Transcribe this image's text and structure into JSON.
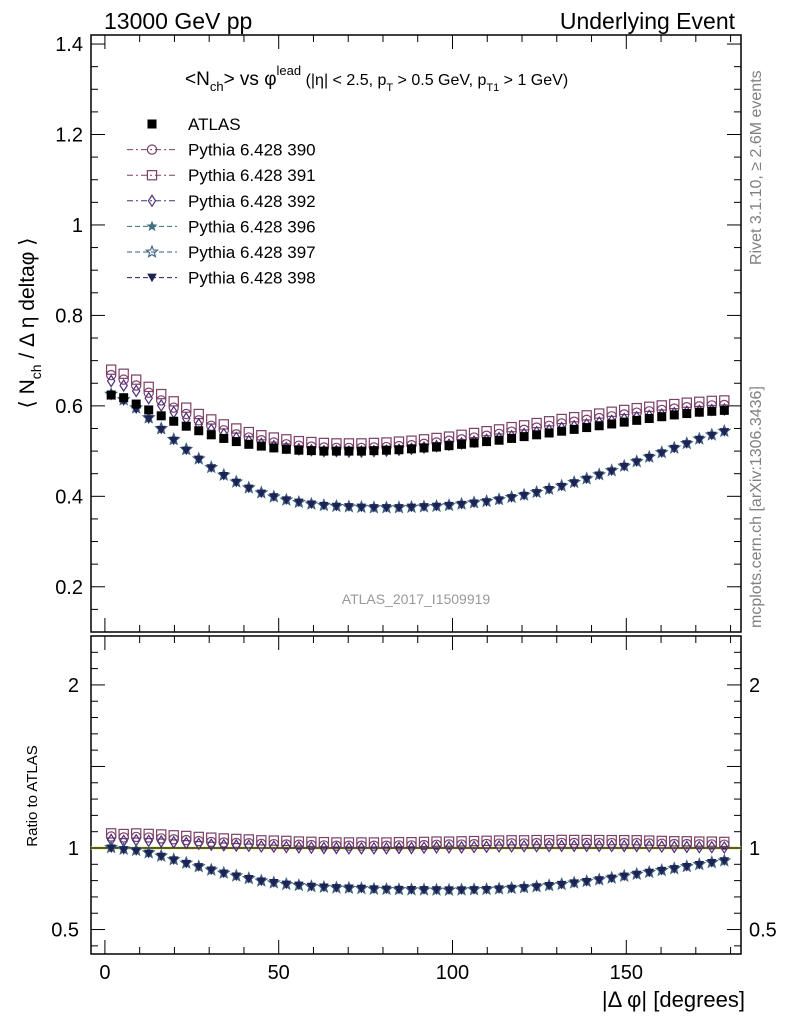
{
  "header": {
    "left": "13000 GeV pp",
    "right": "Underlying Event"
  },
  "side_labels": {
    "rivet": "Rivet 3.1.10, ≥ 2.6M events",
    "mcplots": "mcplots.cern.ch [arXiv:1306.3436]"
  },
  "watermark": "ATLAS_2017_I1509919",
  "chart_data": {
    "type": "scatter",
    "title": "<Nch> vs φlead (|η| < 2.5, pT > 0.5 GeV, pT1 > 1 GeV)",
    "title_parts": {
      "n": "<N",
      "n_sub": "ch",
      "mid": "> vs φ",
      "lead_sup": "lead",
      "cuts_a": " (|η| < 2.5, p",
      "t_sub": "T",
      "cuts_b": " > 0.5 GeV, p",
      "t1_sub": "T1",
      "cuts_c": " > 1 GeV)"
    },
    "ylabel_parts": {
      "a": "⟨ N",
      "sub": "ch",
      "b": " / Δ η deltaφ ⟩"
    },
    "xlabel": "|Δ φ| [degrees]",
    "ratio_ylabel": "Ratio to ATLAS",
    "xlim": [
      -4,
      183
    ],
    "ylim_main": [
      0.1,
      1.42
    ],
    "ylim_ratio": [
      0.35,
      2.3
    ],
    "x_ticks": [
      0,
      50,
      100,
      150
    ],
    "y_ticks_main": [
      0.2,
      0.4,
      0.6,
      0.8,
      1,
      1.2,
      1.4
    ],
    "y_ticks_ratio": [
      0.5,
      1,
      2
    ],
    "legend_position": "top-left",
    "x": [
      1.8,
      5.4,
      9.0,
      12.6,
      16.2,
      19.8,
      23.4,
      27.0,
      30.6,
      34.2,
      37.8,
      41.4,
      45.0,
      48.6,
      52.2,
      55.8,
      59.4,
      63.0,
      66.6,
      70.2,
      73.8,
      77.4,
      81.0,
      84.6,
      88.2,
      91.8,
      95.4,
      99.0,
      102.6,
      106.2,
      109.8,
      113.4,
      117.0,
      120.6,
      124.2,
      127.8,
      131.4,
      135.0,
      138.6,
      142.2,
      145.8,
      149.4,
      153.0,
      156.6,
      160.2,
      163.8,
      167.4,
      171.0,
      174.6,
      178.2
    ],
    "series": [
      {
        "name": "ATLAS",
        "color": "#000000",
        "marker": "square-filled",
        "line": "none",
        "values": [
          0.624,
          0.618,
          0.604,
          0.591,
          0.578,
          0.566,
          0.555,
          0.545,
          0.536,
          0.528,
          0.521,
          0.515,
          0.511,
          0.507,
          0.504,
          0.502,
          0.501,
          0.5,
          0.5,
          0.5,
          0.5,
          0.501,
          0.502,
          0.503,
          0.505,
          0.507,
          0.509,
          0.512,
          0.515,
          0.518,
          0.521,
          0.524,
          0.528,
          0.532,
          0.536,
          0.54,
          0.544,
          0.548,
          0.552,
          0.556,
          0.56,
          0.564,
          0.568,
          0.572,
          0.576,
          0.58,
          0.583,
          0.586,
          0.588,
          0.59
        ]
      },
      {
        "name": "Pythia 6.428 390",
        "color": "#7b3f68",
        "marker": "circle-open",
        "line": "dashdot",
        "values": [
          0.668,
          0.658,
          0.645,
          0.629,
          0.612,
          0.596,
          0.582,
          0.568,
          0.556,
          0.546,
          0.537,
          0.53,
          0.524,
          0.519,
          0.515,
          0.512,
          0.51,
          0.508,
          0.507,
          0.507,
          0.507,
          0.508,
          0.509,
          0.511,
          0.513,
          0.516,
          0.519,
          0.523,
          0.526,
          0.53,
          0.534,
          0.538,
          0.543,
          0.547,
          0.552,
          0.556,
          0.561,
          0.565,
          0.569,
          0.573,
          0.577,
          0.581,
          0.585,
          0.588,
          0.591,
          0.594,
          0.597,
          0.599,
          0.601,
          0.602
        ]
      },
      {
        "name": "Pythia 6.428 391",
        "color": "#7b3f68",
        "marker": "square-open",
        "line": "dashdot",
        "values": [
          0.68,
          0.671,
          0.658,
          0.642,
          0.626,
          0.61,
          0.596,
          0.582,
          0.57,
          0.559,
          0.55,
          0.542,
          0.535,
          0.53,
          0.526,
          0.522,
          0.52,
          0.518,
          0.517,
          0.517,
          0.517,
          0.518,
          0.519,
          0.521,
          0.523,
          0.526,
          0.529,
          0.532,
          0.536,
          0.54,
          0.544,
          0.548,
          0.553,
          0.557,
          0.562,
          0.566,
          0.571,
          0.575,
          0.579,
          0.583,
          0.587,
          0.591,
          0.595,
          0.598,
          0.601,
          0.604,
          0.607,
          0.609,
          0.611,
          0.612
        ]
      },
      {
        "name": "Pythia 6.428 392",
        "color": "#4a2f7a",
        "marker": "diamond-open",
        "line": "dashdot",
        "values": [
          0.655,
          0.645,
          0.633,
          0.617,
          0.601,
          0.586,
          0.572,
          0.559,
          0.547,
          0.537,
          0.529,
          0.522,
          0.516,
          0.511,
          0.507,
          0.504,
          0.502,
          0.5,
          0.5,
          0.499,
          0.499,
          0.5,
          0.501,
          0.503,
          0.505,
          0.508,
          0.511,
          0.514,
          0.517,
          0.521,
          0.525,
          0.529,
          0.533,
          0.538,
          0.542,
          0.546,
          0.551,
          0.555,
          0.559,
          0.563,
          0.567,
          0.571,
          0.575,
          0.578,
          0.581,
          0.584,
          0.587,
          0.589,
          0.591,
          0.592
        ]
      },
      {
        "name": "Pythia 6.428 396",
        "color": "#3f6f80",
        "marker": "star-filled",
        "line": "dashed",
        "values": [
          0.624,
          0.612,
          0.594,
          0.572,
          0.548,
          0.524,
          0.502,
          0.482,
          0.463,
          0.446,
          0.431,
          0.418,
          0.407,
          0.399,
          0.392,
          0.387,
          0.383,
          0.38,
          0.378,
          0.377,
          0.376,
          0.375,
          0.375,
          0.375,
          0.376,
          0.377,
          0.378,
          0.38,
          0.382,
          0.385,
          0.388,
          0.392,
          0.397,
          0.402,
          0.408,
          0.415,
          0.422,
          0.43,
          0.438,
          0.447,
          0.456,
          0.466,
          0.476,
          0.486,
          0.496,
          0.506,
          0.516,
          0.526,
          0.535,
          0.543
        ]
      },
      {
        "name": "Pythia 6.428 397",
        "color": "#3a5f7f",
        "marker": "star-open",
        "line": "dashed",
        "values": [
          0.626,
          0.614,
          0.596,
          0.574,
          0.55,
          0.526,
          0.504,
          0.483,
          0.464,
          0.447,
          0.432,
          0.419,
          0.408,
          0.399,
          0.392,
          0.387,
          0.383,
          0.38,
          0.378,
          0.377,
          0.376,
          0.375,
          0.375,
          0.375,
          0.376,
          0.377,
          0.378,
          0.38,
          0.383,
          0.386,
          0.389,
          0.393,
          0.398,
          0.403,
          0.409,
          0.416,
          0.423,
          0.431,
          0.439,
          0.448,
          0.457,
          0.467,
          0.477,
          0.487,
          0.497,
          0.507,
          0.517,
          0.527,
          0.536,
          0.544
        ]
      },
      {
        "name": "Pythia 6.428 398",
        "color": "#1f2255",
        "marker": "triangle-down-filled",
        "line": "dashed",
        "values": [
          0.622,
          0.61,
          0.592,
          0.57,
          0.547,
          0.523,
          0.501,
          0.481,
          0.462,
          0.445,
          0.43,
          0.417,
          0.406,
          0.398,
          0.391,
          0.386,
          0.382,
          0.379,
          0.377,
          0.376,
          0.375,
          0.374,
          0.374,
          0.374,
          0.375,
          0.376,
          0.377,
          0.379,
          0.381,
          0.384,
          0.387,
          0.391,
          0.396,
          0.401,
          0.407,
          0.414,
          0.421,
          0.429,
          0.437,
          0.446,
          0.455,
          0.465,
          0.475,
          0.485,
          0.495,
          0.505,
          0.515,
          0.525,
          0.534,
          0.542
        ]
      }
    ]
  }
}
